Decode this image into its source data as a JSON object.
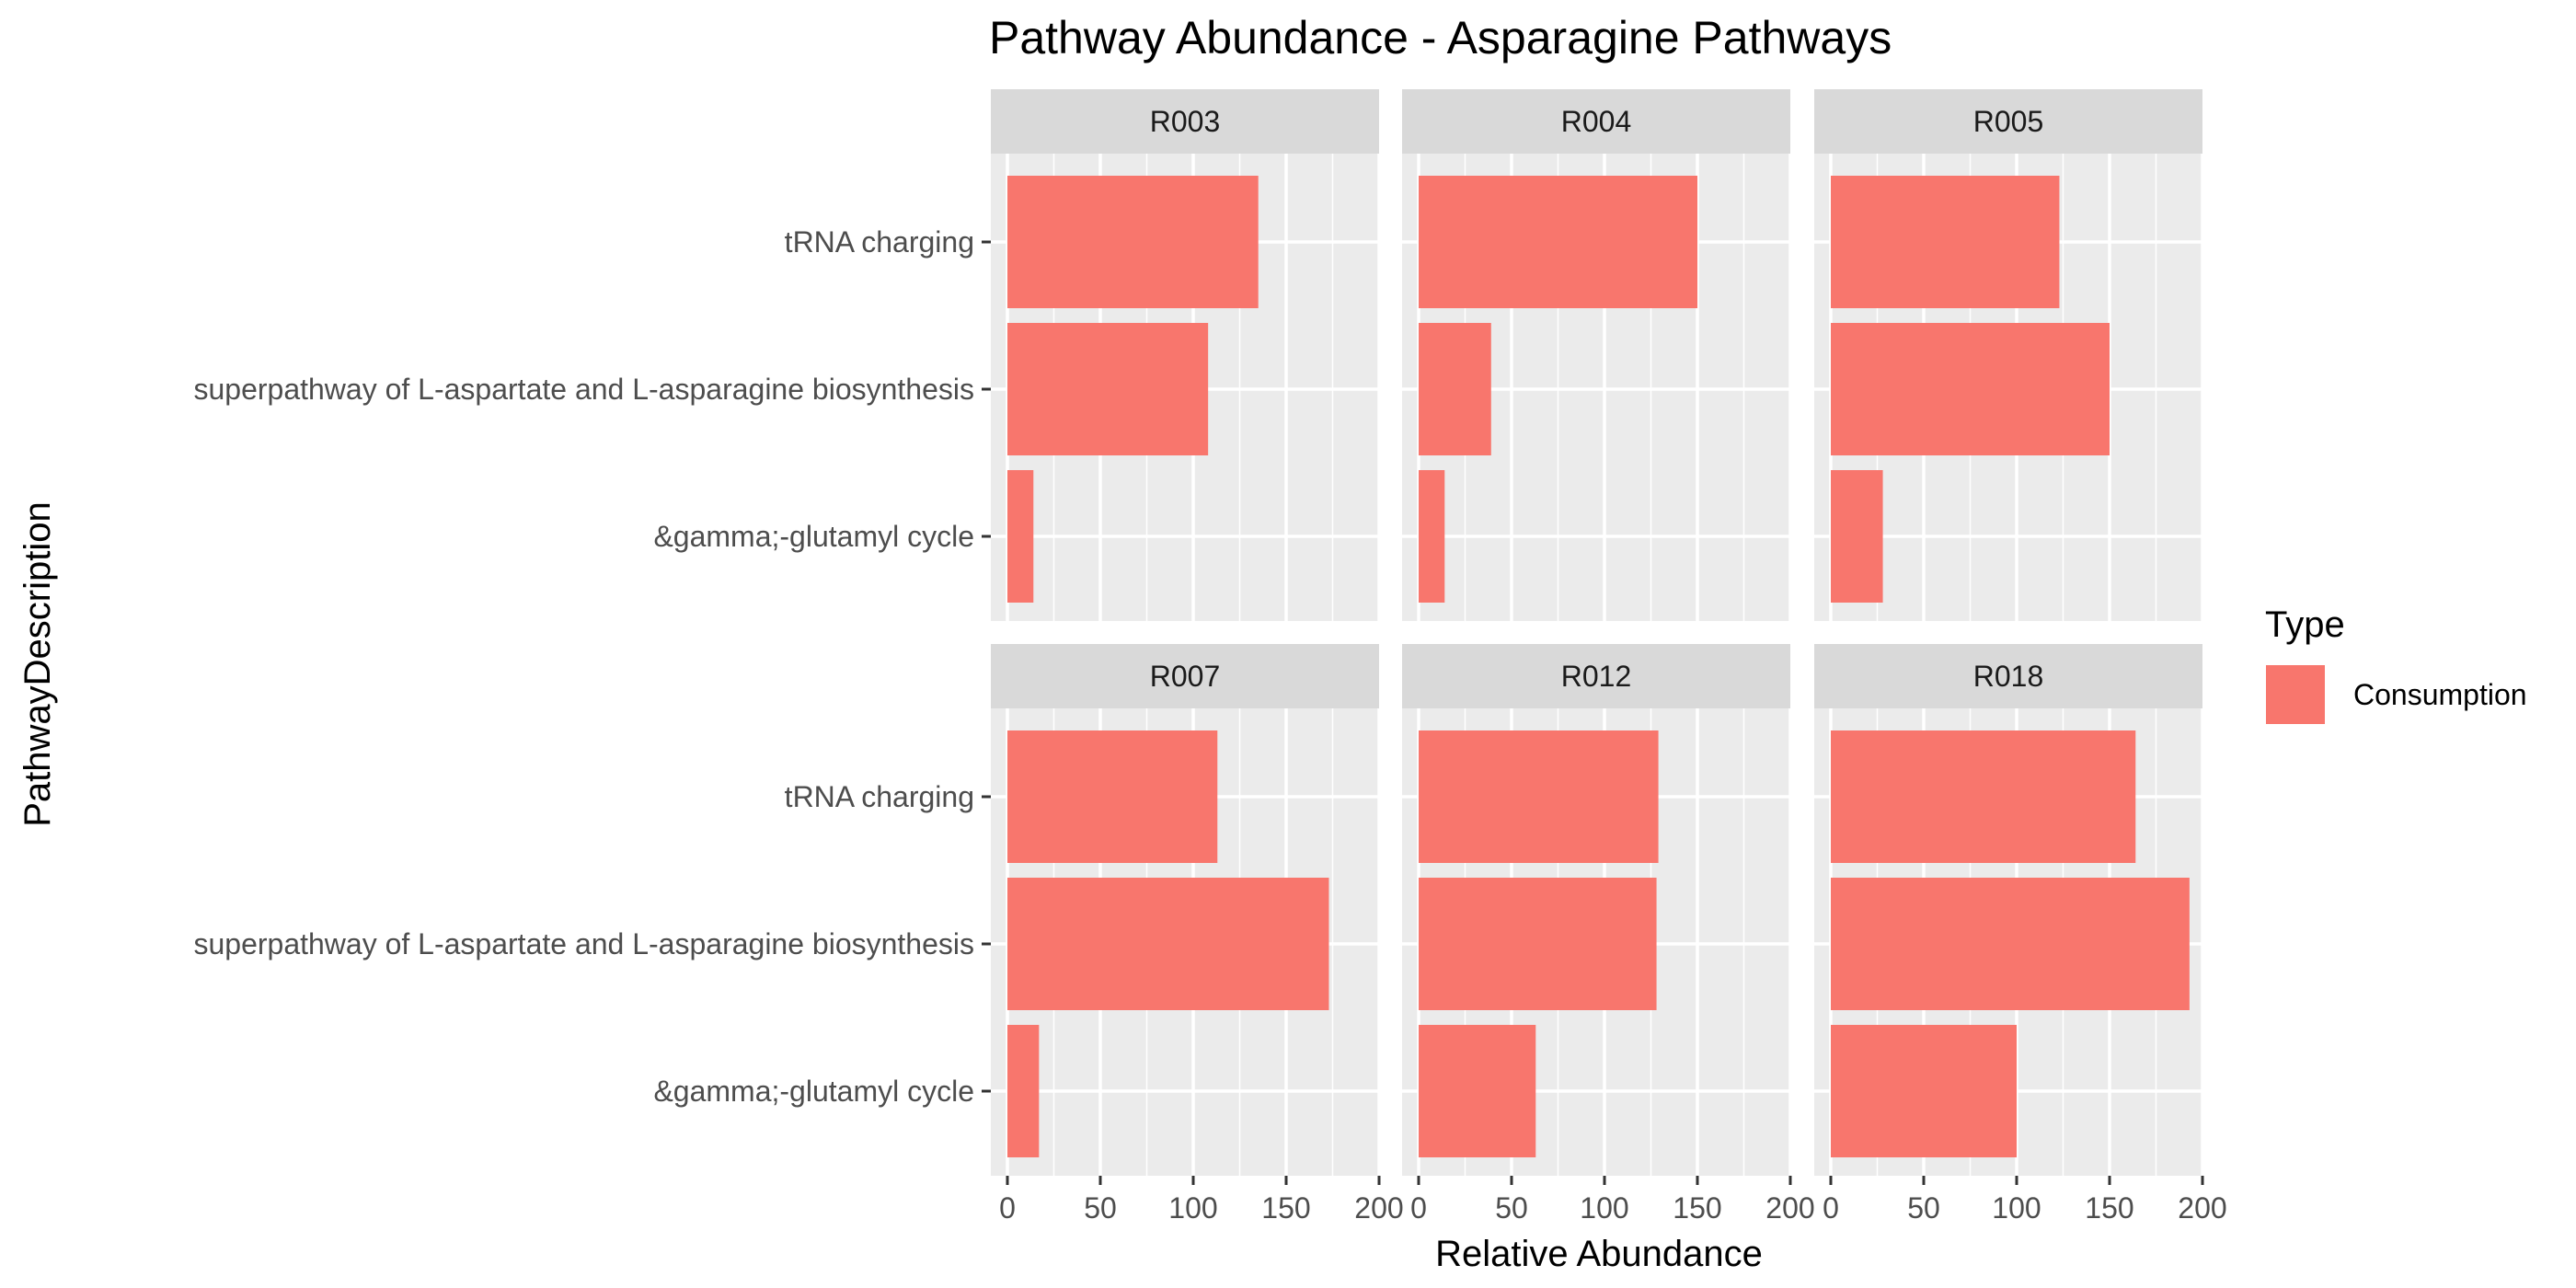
{
  "chart_data": {
    "type": "bar",
    "orientation": "horizontal",
    "title": "Pathway Abundance - Asparagine Pathways",
    "xlabel": "Relative Abundance",
    "ylabel": "PathwayDescription",
    "xlim": [
      0,
      200
    ],
    "x_ticks": [
      "0",
      "50",
      "100",
      "150",
      "200"
    ],
    "categories": [
      "tRNA charging",
      "superpathway of L-aspartate and L-asparagine biosynthesis",
      "&gamma;-glutamyl cycle"
    ],
    "grid": true,
    "legend": {
      "title": "Type",
      "position": "right",
      "entries": [
        {
          "label": "Consumption",
          "color": "#F8766D"
        }
      ]
    },
    "colors": {
      "bar": "#F8766D",
      "panel_background": "#EBEBEB",
      "strip_background": "#D9D9D9",
      "grid": "#FFFFFF"
    },
    "facets": [
      {
        "name": "R003",
        "values": [
          135,
          108,
          14
        ]
      },
      {
        "name": "R004",
        "values": [
          150,
          39,
          14
        ]
      },
      {
        "name": "R005",
        "values": [
          123,
          150,
          28
        ]
      },
      {
        "name": "R007",
        "values": [
          113,
          173,
          17
        ]
      },
      {
        "name": "R012",
        "values": [
          129,
          128,
          63
        ]
      },
      {
        "name": "R018",
        "values": [
          164,
          193,
          100
        ]
      }
    ]
  }
}
